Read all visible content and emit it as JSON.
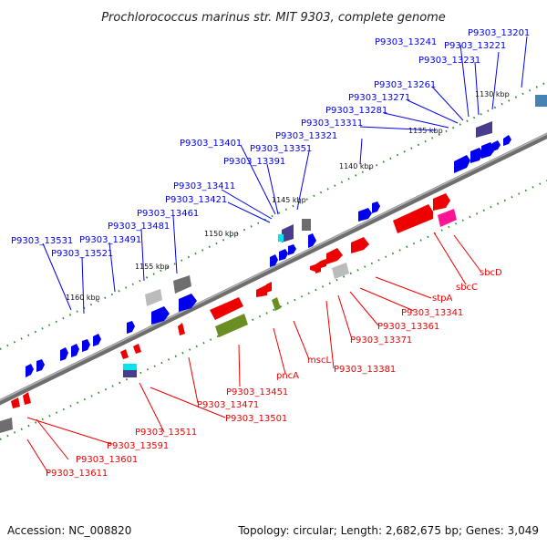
{
  "title": "Prochlorococcus marinus str. MIT 9303, complete genome",
  "footer": {
    "accession": "Accession: NC_008820",
    "summary": "Topology: circular; Length: 2,682,675 bp; Genes: 3,049"
  },
  "colors": {
    "forward_strand": "#0000ee",
    "reverse_strand": "#ee0000",
    "backbone": "#888888",
    "tick": "#228822",
    "other_features": [
      "#777777",
      "#bbbbbb",
      "#6b8e23",
      "#00e5ee",
      "#ff1493",
      "#4682b4",
      "#483d8b"
    ]
  },
  "scale_ticks": [
    "1130 kbp",
    "1135 kbp",
    "1140 kbp",
    "1145 kbp",
    "1150 kbp",
    "1155 kbp",
    "1160 kbp"
  ],
  "forward_labels": [
    "P9303_13201",
    "P9303_13221",
    "P9303_13241",
    "P9303_13231",
    "P9303_13261",
    "P9303_13271",
    "P9303_13281",
    "P9303_13311",
    "P9303_13321",
    "P9303_13351",
    "P9303_13401",
    "P9303_13391",
    "P9303_13411",
    "P9303_13421",
    "P9303_13461",
    "P9303_13481",
    "P9303_13491",
    "P9303_13531",
    "P9303_13521"
  ],
  "reverse_labels": [
    "sbcD",
    "sbcC",
    "stpA",
    "P9303_13341",
    "P9303_13361",
    "P9303_13371",
    "P9303_13381",
    "mscL",
    "pncA",
    "P9303_13451",
    "P9303_13471",
    "P9303_13501",
    "P9303_13511",
    "P9303_13591",
    "P9303_13601",
    "P9303_13611"
  ]
}
